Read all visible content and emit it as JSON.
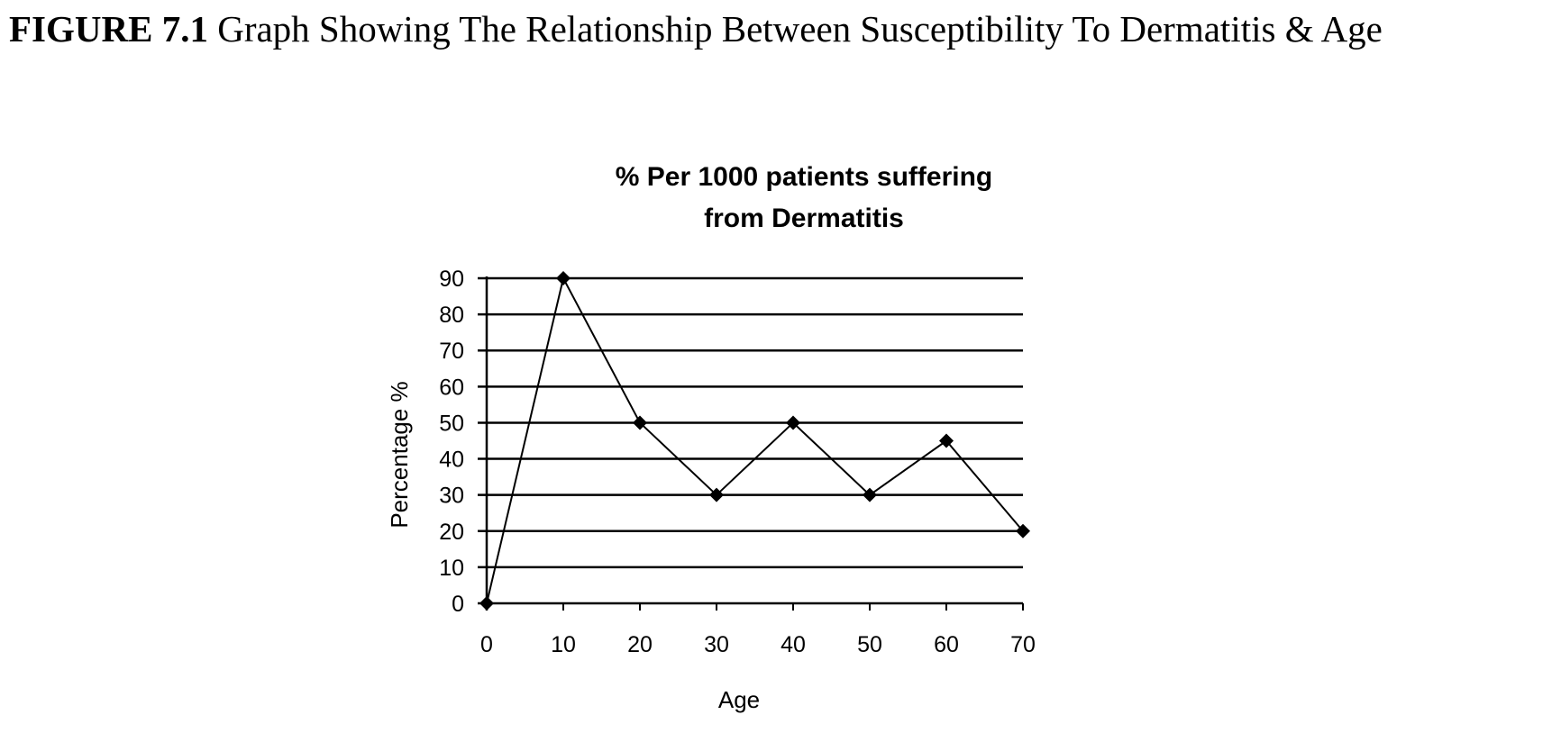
{
  "caption": {
    "number": "FIGURE 7.1",
    "text": "Graph Showing The Relationship Between Susceptibility To Dermatitis & Age"
  },
  "chart_data": {
    "type": "line",
    "title_lines": [
      "% Per 1000 patients suffering",
      "from Dermatitis"
    ],
    "xlabel": "Age",
    "ylabel": "Percentage %",
    "x": [
      0,
      10,
      20,
      30,
      40,
      50,
      60,
      70
    ],
    "values": [
      0,
      90,
      50,
      30,
      50,
      30,
      45,
      20
    ],
    "x_ticks": [
      "0",
      "10",
      "20",
      "30",
      "40",
      "50",
      "60",
      "70"
    ],
    "y_ticks": [
      "0",
      "10",
      "20",
      "30",
      "40",
      "50",
      "60",
      "70",
      "80",
      "90"
    ],
    "xlim": [
      0,
      70
    ],
    "ylim": [
      0,
      90
    ],
    "grid": true,
    "marker": "diamond",
    "line_color": "#000000"
  }
}
